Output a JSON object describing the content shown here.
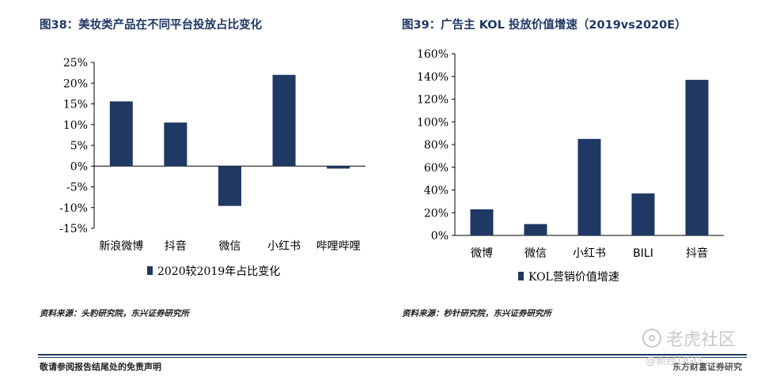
{
  "charts": {
    "left_title": "图38：美妆类产品在不同平台投放占比变化",
    "right_title": "图39：广告主 KOL 投放价值增速（2019vs2020E）"
  },
  "chart_data": [
    {
      "type": "bar",
      "title": "图38：美妆类产品在不同平台投放占比变化",
      "categories": [
        "新浪微博",
        "抖音",
        "微信",
        "小红书",
        "哔哩哔哩"
      ],
      "series": [
        {
          "name": "2020较2019年占比变化",
          "values": [
            15.6,
            10.5,
            -9.6,
            22.0,
            -0.6
          ],
          "color": "#1f3864"
        }
      ],
      "yticks": [
        "25%",
        "20%",
        "15%",
        "10%",
        "5%",
        "0%",
        "-5%",
        "-10%",
        "-15%"
      ],
      "ylim": [
        -15,
        25
      ],
      "ytick_step": 5,
      "unit": "%",
      "grid": false,
      "legend_position": "bottom"
    },
    {
      "type": "bar",
      "title": "图39：广告主 KOL 投放价值增速（2019vs2020E）",
      "categories": [
        "微博",
        "微信",
        "小红书",
        "BILI",
        "抖音"
      ],
      "series": [
        {
          "name": "KOL营销价值增速",
          "values": [
            23,
            10,
            85,
            37,
            137
          ],
          "color": "#1f3864"
        }
      ],
      "yticks": [
        "160%",
        "140%",
        "120%",
        "100%",
        "80%",
        "60%",
        "40%",
        "20%",
        "0%"
      ],
      "ylim": [
        0,
        160
      ],
      "ytick_step": 20,
      "unit": "%",
      "grid": false,
      "legend_position": "bottom"
    }
  ],
  "sources": {
    "left": "资料来源：头豹研究院，东兴证券研究所",
    "right": "资料来源：秒针研究院，东兴证券研究所"
  },
  "footer": {
    "disclaimer": "敬请参阅报告结尾处的免责声明",
    "brand": "东方财富证券研究"
  },
  "watermark": {
    "main": "老虎社区",
    "sub": "@新经TIGO"
  },
  "colors": {
    "bar": "#1f3864",
    "title": "#1f3864"
  }
}
